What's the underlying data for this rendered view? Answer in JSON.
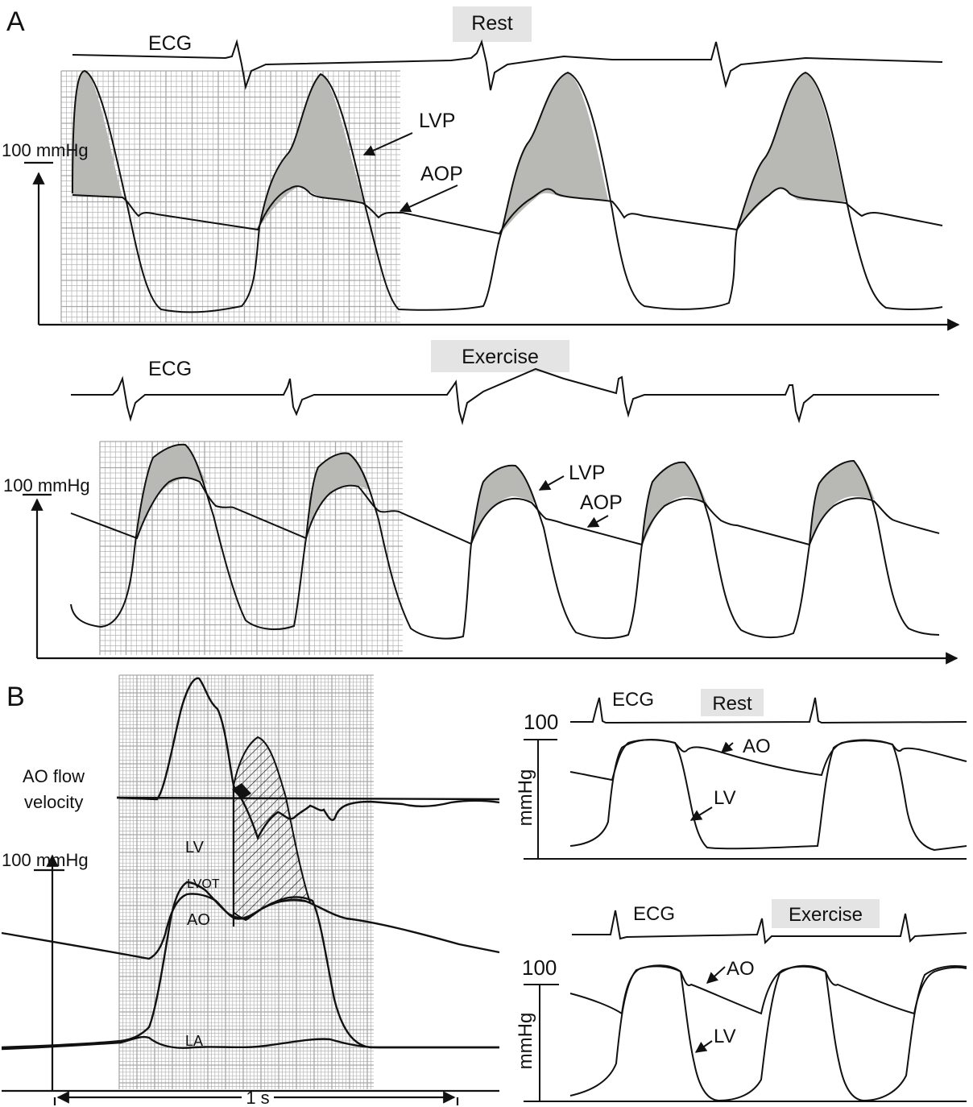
{
  "panel_a": {
    "letter": "A",
    "rest": {
      "badge": "Rest",
      "ecg_label": "ECG",
      "lvp_label": "LVP",
      "aop_label": "AOP",
      "scale_label": "100 mmHg"
    },
    "exercise": {
      "badge": "Exercise",
      "ecg_label": "ECG",
      "lvp_label": "LVP",
      "aop_label": "AOP",
      "scale_label": "100 mmHg"
    }
  },
  "panel_b": {
    "letter": "B",
    "flow_label_line1": "AO flow",
    "flow_label_line2": "velocity",
    "scale_label": "100 mmHg",
    "lv_label": "LV",
    "lvot_label": "LVOT",
    "ao_label": "AO",
    "la_label": "LA",
    "time_label": "1 s",
    "rest": {
      "badge": "Rest",
      "ecg_label": "ECG",
      "scale_value": "100",
      "unit": "mmHg",
      "ao_label": "AO",
      "lv_label": "LV"
    },
    "exercise": {
      "badge": "Exercise",
      "ecg_label": "ECG",
      "scale_value": "100",
      "unit": "mmHg",
      "ao_label": "AO",
      "lv_label": "LV"
    }
  },
  "colors": {
    "trace": "#111111",
    "shade": "#b8b8b4",
    "badge": "#e4e4e4",
    "grid": "#9a9a9a"
  }
}
